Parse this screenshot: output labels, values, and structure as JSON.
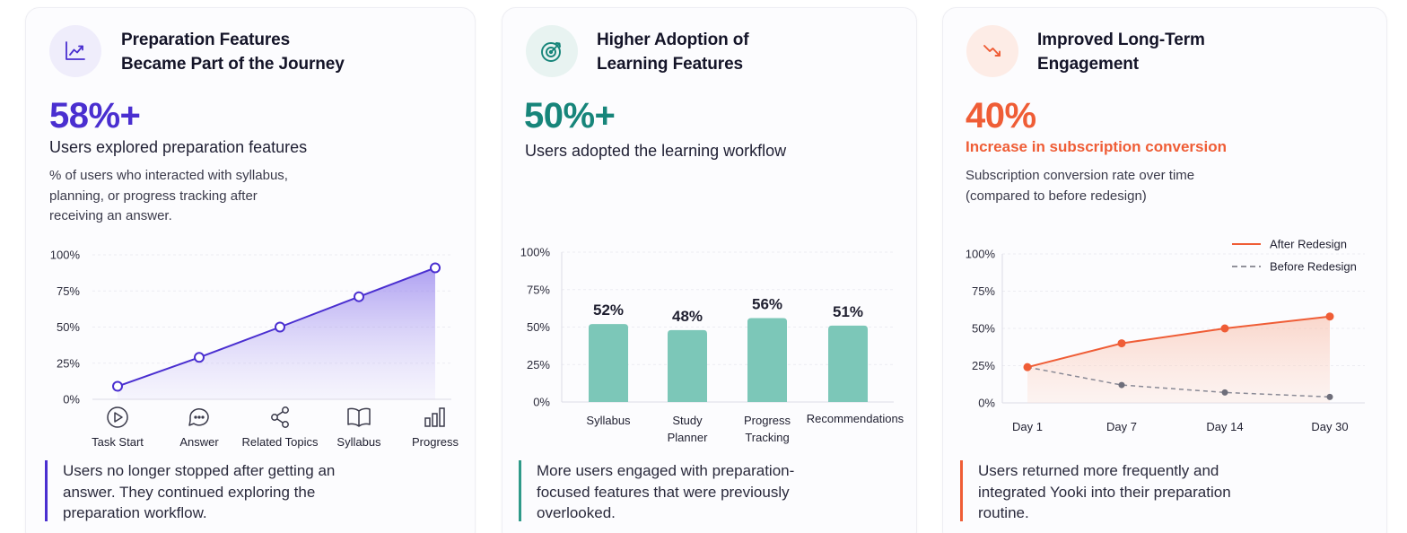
{
  "colors": {
    "purple": "#4a2fd0",
    "teal": "#17857a",
    "teal_bar": "#7cc7b8",
    "orange": "#ef5d36",
    "gray_line": "#8a8a96"
  },
  "cards": [
    {
      "icon": "trending-up-icon",
      "title_line1": "Preparation Features",
      "title_line2": "Became Part of the Journey",
      "big_value": "58%+",
      "subtitle": "Users explored preparation features",
      "desc_line1": "% of users who interacted with syllabus,",
      "desc_line2": "planning, or progress tracking after",
      "desc_line3": "receiving an answer.",
      "callout_line1": "Users no longer stopped after getting an",
      "callout_line2": "answer. They continued exploring the",
      "callout_line3": "preparation workflow."
    },
    {
      "icon": "target-icon",
      "title_line1": "Higher Adoption of",
      "title_line2": "Learning Features",
      "big_value": "50%+",
      "subtitle": "Users adopted the learning workflow",
      "callout_line1": "More users engaged with preparation-",
      "callout_line2": "focused features that were previously",
      "callout_line3": "overlooked."
    },
    {
      "icon": "trending-down-icon",
      "title_line1": "Improved Long-Term",
      "title_line2": "Engagement",
      "big_value": "40%",
      "subtitle": "Increase in subscription conversion",
      "desc_line1": "Subscription conversion rate over time",
      "desc_line2": "(compared to before redesign)",
      "callout_line1": "Users returned more frequently and",
      "callout_line2": "integrated Yooki into their preparation",
      "callout_line3": "routine."
    }
  ],
  "chart_data": [
    {
      "type": "area",
      "categories": [
        "Task Start",
        "Answer",
        "Related Topics",
        "Syllabus",
        "Progress"
      ],
      "category_icons": [
        "play-circle-icon",
        "chat-bubble-icon",
        "share-icon",
        "book-icon",
        "bar-chart-icon"
      ],
      "values": [
        9,
        29,
        50,
        71,
        91
      ],
      "y_ticks": [
        "0%",
        "25%",
        "50%",
        "75%",
        "100%"
      ],
      "ylim": [
        0,
        100
      ],
      "grid": true
    },
    {
      "type": "bar",
      "categories": [
        [
          "Syllabus"
        ],
        [
          "Study",
          "Planner"
        ],
        [
          "Progress",
          "Tracking"
        ],
        [
          "Recommendations"
        ]
      ],
      "values": [
        52,
        48,
        56,
        51
      ],
      "data_labels": [
        "52%",
        "48%",
        "56%",
        "51%"
      ],
      "y_ticks": [
        "0%",
        "25%",
        "50%",
        "75%",
        "100%"
      ],
      "ylim": [
        0,
        100
      ],
      "grid": true
    },
    {
      "type": "line",
      "categories": [
        "Day 1",
        "Day 7",
        "Day 14",
        "Day 30"
      ],
      "series": [
        {
          "name": "After Redesign",
          "values": [
            24,
            40,
            50,
            58
          ]
        },
        {
          "name": "Before Redesign",
          "values": [
            24,
            12,
            7,
            4
          ]
        }
      ],
      "y_ticks": [
        "0%",
        "25%",
        "50%",
        "75%",
        "100%"
      ],
      "ylim": [
        0,
        100
      ],
      "legend": "top-right",
      "grid": true
    }
  ]
}
